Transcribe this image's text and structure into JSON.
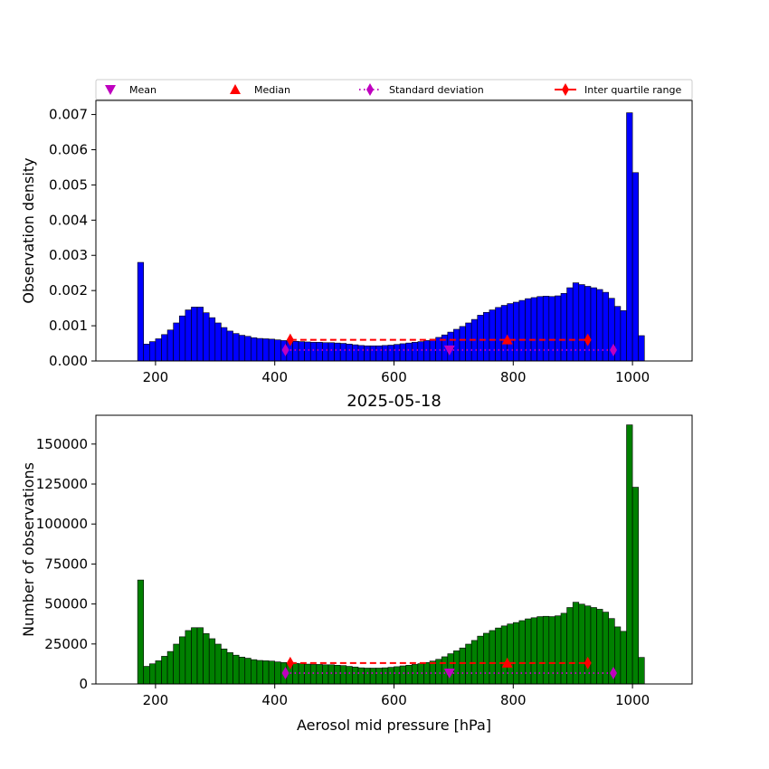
{
  "figure": {
    "legend": {
      "placement": "above-top-panel",
      "entries": [
        {
          "label": "Mean",
          "marker": "triangle-down",
          "color": "#bf00bf",
          "line": "none"
        },
        {
          "label": "Median",
          "marker": "triangle-up",
          "color": "#ff0000",
          "line": "none"
        },
        {
          "label": "Standard deviation",
          "marker": "thin-diamond",
          "color": "#bf00bf",
          "line": "dotted"
        },
        {
          "label": "Inter quartile range",
          "marker": "thin-diamond",
          "color": "#ff0000",
          "line": "solid"
        }
      ]
    }
  },
  "chart_data": [
    {
      "type": "bar",
      "panel": "top",
      "title": "",
      "xlabel": "",
      "ylabel": "Observation density",
      "xlim": [
        100,
        1100
      ],
      "ylim": [
        0,
        0.0074
      ],
      "xticks": [
        200,
        400,
        600,
        800,
        1000
      ],
      "yticks": [
        0.0,
        0.001,
        0.002,
        0.003,
        0.004,
        0.005,
        0.006,
        0.007
      ],
      "ytick_labels": [
        "0.000",
        "0.001",
        "0.002",
        "0.003",
        "0.004",
        "0.005",
        "0.006",
        "0.007"
      ],
      "bar_color": "#0000ff",
      "bins": {
        "start": 170,
        "width": 10
      },
      "values": [
        0.0028,
        0.00048,
        0.00055,
        0.00063,
        0.00075,
        0.00088,
        0.00108,
        0.00128,
        0.00145,
        0.00153,
        0.00153,
        0.00137,
        0.00123,
        0.00108,
        0.00095,
        0.00085,
        0.00078,
        0.00073,
        0.0007,
        0.00066,
        0.00064,
        0.00063,
        0.00062,
        0.0006,
        0.00058,
        0.00057,
        0.00056,
        0.00055,
        0.00054,
        0.00053,
        0.00053,
        0.00052,
        0.00052,
        0.00051,
        0.0005,
        0.00048,
        0.00046,
        0.00044,
        0.00043,
        0.00043,
        0.00043,
        0.00044,
        0.00045,
        0.00047,
        0.00049,
        0.00051,
        0.00053,
        0.00055,
        0.00058,
        0.00062,
        0.00067,
        0.00074,
        0.00082,
        0.0009,
        0.00098,
        0.00108,
        0.00118,
        0.0013,
        0.00138,
        0.00145,
        0.00152,
        0.00158,
        0.00163,
        0.00167,
        0.00172,
        0.00177,
        0.0018,
        0.00183,
        0.00184,
        0.00183,
        0.00185,
        0.00192,
        0.00208,
        0.00222,
        0.00217,
        0.00212,
        0.00208,
        0.00203,
        0.00195,
        0.00178,
        0.00155,
        0.00143,
        0.00705,
        0.00535,
        0.00072
      ],
      "stats": {
        "mean": {
          "x": 693,
          "y": 0.00031
        },
        "median": {
          "x": 790,
          "y": 0.0006
        },
        "std": {
          "x": [
            418,
            968
          ],
          "y": 0.00031
        },
        "iqr": {
          "x": [
            426,
            925
          ],
          "y": 0.0006
        }
      }
    },
    {
      "type": "bar",
      "panel": "bottom",
      "title": "2025-05-18",
      "xlabel": "Aerosol mid pressure [hPa]",
      "ylabel": "Number of observations",
      "xlim": [
        100,
        1100
      ],
      "ylim": [
        0,
        168000
      ],
      "xticks": [
        200,
        400,
        600,
        800,
        1000
      ],
      "yticks": [
        0,
        25000,
        50000,
        75000,
        100000,
        125000,
        150000
      ],
      "ytick_labels": [
        "0",
        "25000",
        "50000",
        "75000",
        "100000",
        "125000",
        "150000"
      ],
      "bar_color": "#008000",
      "bins": {
        "start": 170,
        "width": 10
      },
      "values": [
        65000,
        11000,
        12600,
        14500,
        17300,
        20300,
        24900,
        29500,
        33400,
        35200,
        35200,
        31500,
        28300,
        24900,
        21900,
        19600,
        18000,
        16800,
        16100,
        15200,
        14700,
        14500,
        14300,
        13800,
        13400,
        13100,
        12900,
        12700,
        12400,
        12200,
        12200,
        12000,
        12000,
        11700,
        11500,
        11000,
        10600,
        10100,
        9900,
        9900,
        9900,
        10100,
        10400,
        10800,
        11300,
        11700,
        12200,
        12700,
        13400,
        14300,
        15400,
        17000,
        18900,
        20700,
        22500,
        24900,
        27200,
        29900,
        31700,
        33400,
        35000,
        36300,
        37500,
        38400,
        39600,
        40700,
        41400,
        42100,
        42300,
        42100,
        42600,
        44200,
        47800,
        51100,
        49900,
        48800,
        47800,
        46700,
        44900,
        40900,
        35700,
        32900,
        162000,
        123000,
        16600
      ],
      "stats": {
        "mean": {
          "x": 693,
          "y": 6800
        },
        "median": {
          "x": 790,
          "y": 13100
        },
        "std": {
          "x": [
            418,
            968
          ],
          "y": 6800
        },
        "iqr": {
          "x": [
            426,
            925
          ],
          "y": 13100
        }
      }
    }
  ]
}
